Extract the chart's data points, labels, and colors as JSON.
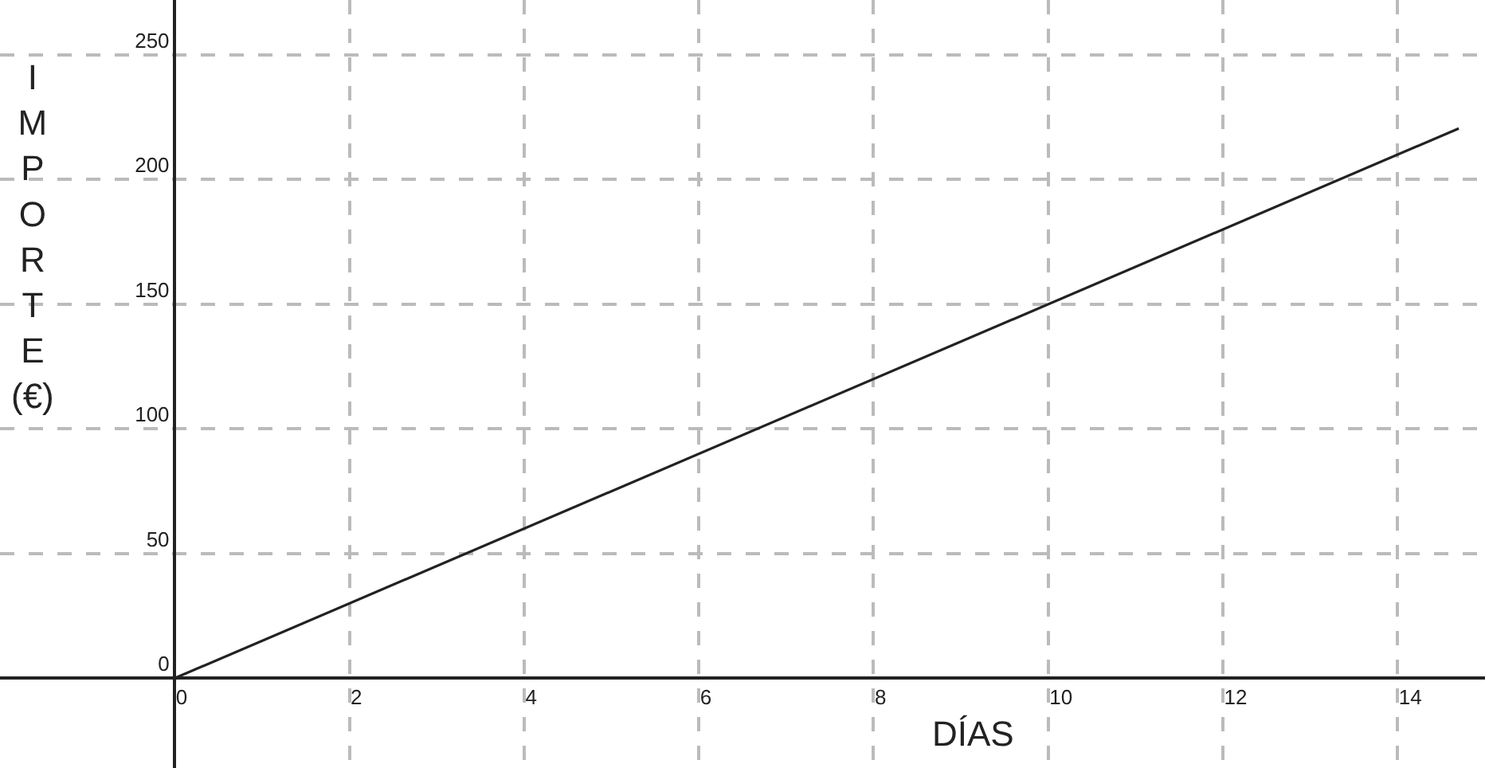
{
  "chart_data": {
    "type": "line",
    "xlabel": "DÍAS",
    "ylabel": "IMPORTE (€)",
    "x": [
      0,
      14.7
    ],
    "series": [
      {
        "color": "#222222",
        "values": [
          0,
          220.5
        ]
      }
    ],
    "xlim": [
      -2,
      15
    ],
    "ylim": [
      -36,
      272
    ],
    "xticks": [
      0,
      2,
      4,
      6,
      8,
      10,
      12,
      14
    ],
    "yticks": [
      0,
      50,
      100,
      150,
      200,
      250
    ],
    "grid": true,
    "marker": "none",
    "line_style": "solid"
  }
}
